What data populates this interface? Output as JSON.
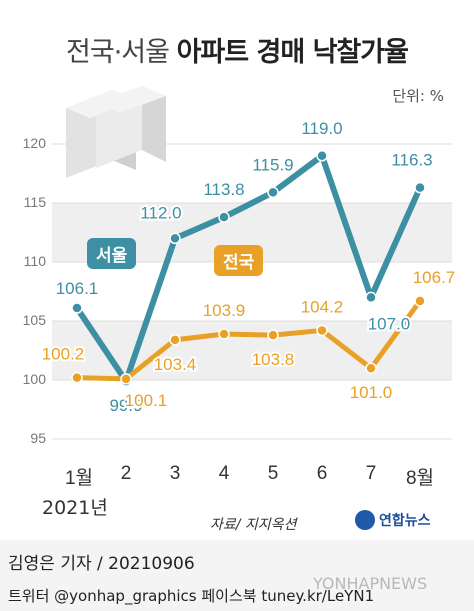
{
  "header": {
    "title_prefix": "전국·서울",
    "title_main": "아파트 경매 낙찰가율",
    "unit": "단위: %"
  },
  "chart_data": {
    "type": "line",
    "categories": [
      "1월",
      "2",
      "3",
      "4",
      "5",
      "6",
      "7",
      "8월"
    ],
    "year_label": "2021년",
    "series": [
      {
        "name": "서울",
        "values": [
          106.1,
          99.9,
          112.0,
          113.8,
          115.9,
          119.0,
          107.0,
          116.3
        ],
        "labels": [
          "106.1",
          "99.9",
          "112.0",
          "113.8",
          "115.9",
          "119.0",
          "107.0",
          "116.3"
        ],
        "color": "#3d8fa3"
      },
      {
        "name": "전국",
        "values": [
          100.2,
          100.1,
          103.4,
          103.9,
          103.8,
          104.2,
          101.0,
          106.7
        ],
        "labels": [
          "100.2",
          "100.1",
          "103.4",
          "103.9",
          "103.8",
          "104.2",
          "101.0",
          "106.7"
        ],
        "color": "#e8a126"
      }
    ],
    "ylim": [
      95,
      120
    ],
    "yticks": [
      "95",
      "100",
      "105",
      "110",
      "115",
      "120"
    ],
    "grid": true
  },
  "source": "자료/ 지지옥션",
  "logo_text": "연합뉴스",
  "reporter": "김영은 기자 / 20210906",
  "social": "트위터 @yonhap_graphics  페이스북 tuney.kr/LeYN1",
  "watermark": "YONHAPNEWS",
  "colors": {
    "seoul": "#3d8fa3",
    "national": "#e8a126",
    "band": "#efefef"
  }
}
